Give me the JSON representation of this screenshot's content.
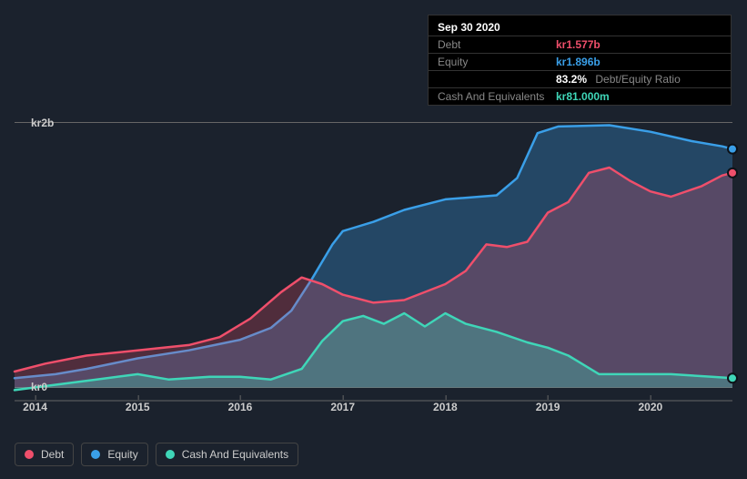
{
  "tooltip": {
    "date": "Sep 30 2020",
    "rows": {
      "debt": {
        "label": "Debt",
        "value": "kr1.577b"
      },
      "equity": {
        "label": "Equity",
        "value": "kr1.896b"
      },
      "ratio": {
        "value": "83.2%",
        "label": "Debt/Equity Ratio"
      },
      "cash": {
        "label": "Cash And Equivalents",
        "value": "kr81.000m"
      }
    }
  },
  "chart": {
    "type": "area",
    "background_color": "#1b222d",
    "grid_color": "#666",
    "axis_font_size": 12,
    "x": {
      "min": 2013.8,
      "max": 2020.8,
      "ticks": [
        2014,
        2015,
        2016,
        2017,
        2018,
        2019,
        2020
      ]
    },
    "y": {
      "min": -0.1,
      "max": 2.1,
      "ticks": [
        {
          "v": 0,
          "label": "kr0"
        },
        {
          "v": 2,
          "label": "kr2b"
        }
      ]
    },
    "series": {
      "equity": {
        "label": "Equity",
        "stroke": "#3a9fe8",
        "fill": "#3a9fe8",
        "fill_opacity": 0.3,
        "line_width": 2.5,
        "data": [
          [
            2013.8,
            0.07
          ],
          [
            2014.2,
            0.1
          ],
          [
            2014.5,
            0.14
          ],
          [
            2015.0,
            0.22
          ],
          [
            2015.5,
            0.28
          ],
          [
            2016.0,
            0.36
          ],
          [
            2016.3,
            0.45
          ],
          [
            2016.5,
            0.58
          ],
          [
            2016.7,
            0.82
          ],
          [
            2016.9,
            1.08
          ],
          [
            2017.0,
            1.18
          ],
          [
            2017.3,
            1.25
          ],
          [
            2017.6,
            1.34
          ],
          [
            2018.0,
            1.42
          ],
          [
            2018.5,
            1.45
          ],
          [
            2018.7,
            1.58
          ],
          [
            2018.9,
            1.92
          ],
          [
            2019.1,
            1.97
          ],
          [
            2019.6,
            1.98
          ],
          [
            2020.0,
            1.93
          ],
          [
            2020.4,
            1.86
          ],
          [
            2020.7,
            1.82
          ],
          [
            2020.8,
            1.8
          ]
        ]
      },
      "debt": {
        "label": "Debt",
        "stroke": "#ef4f6b",
        "fill": "#ef4f6b",
        "fill_opacity": 0.25,
        "line_width": 2.5,
        "data": [
          [
            2013.8,
            0.12
          ],
          [
            2014.1,
            0.18
          ],
          [
            2014.5,
            0.24
          ],
          [
            2015.0,
            0.28
          ],
          [
            2015.5,
            0.32
          ],
          [
            2015.8,
            0.38
          ],
          [
            2016.1,
            0.52
          ],
          [
            2016.4,
            0.72
          ],
          [
            2016.6,
            0.83
          ],
          [
            2016.8,
            0.78
          ],
          [
            2017.0,
            0.7
          ],
          [
            2017.3,
            0.64
          ],
          [
            2017.6,
            0.66
          ],
          [
            2018.0,
            0.78
          ],
          [
            2018.2,
            0.88
          ],
          [
            2018.4,
            1.08
          ],
          [
            2018.6,
            1.06
          ],
          [
            2018.8,
            1.1
          ],
          [
            2019.0,
            1.32
          ],
          [
            2019.2,
            1.4
          ],
          [
            2019.4,
            1.62
          ],
          [
            2019.6,
            1.66
          ],
          [
            2019.8,
            1.56
          ],
          [
            2020.0,
            1.48
          ],
          [
            2020.2,
            1.44
          ],
          [
            2020.5,
            1.52
          ],
          [
            2020.7,
            1.6
          ],
          [
            2020.8,
            1.62
          ]
        ]
      },
      "cash": {
        "label": "Cash And Equivalents",
        "stroke": "#3fd6b8",
        "fill": "#3fd6b8",
        "fill_opacity": 0.3,
        "line_width": 2.5,
        "data": [
          [
            2013.8,
            -0.02
          ],
          [
            2014.2,
            0.02
          ],
          [
            2014.6,
            0.06
          ],
          [
            2015.0,
            0.1
          ],
          [
            2015.3,
            0.06
          ],
          [
            2015.7,
            0.08
          ],
          [
            2016.0,
            0.08
          ],
          [
            2016.3,
            0.06
          ],
          [
            2016.6,
            0.14
          ],
          [
            2016.8,
            0.35
          ],
          [
            2017.0,
            0.5
          ],
          [
            2017.2,
            0.54
          ],
          [
            2017.4,
            0.48
          ],
          [
            2017.6,
            0.56
          ],
          [
            2017.8,
            0.46
          ],
          [
            2018.0,
            0.56
          ],
          [
            2018.2,
            0.48
          ],
          [
            2018.5,
            0.42
          ],
          [
            2018.8,
            0.34
          ],
          [
            2019.0,
            0.3
          ],
          [
            2019.2,
            0.24
          ],
          [
            2019.5,
            0.1
          ],
          [
            2019.8,
            0.1
          ],
          [
            2020.2,
            0.1
          ],
          [
            2020.6,
            0.08
          ],
          [
            2020.8,
            0.07
          ]
        ]
      }
    },
    "endpoint_markers": [
      {
        "series": "equity",
        "x": 2020.8,
        "y": 1.8,
        "fill": "#3a9fe8"
      },
      {
        "series": "debt",
        "x": 2020.8,
        "y": 1.62,
        "fill": "#ef4f6b"
      },
      {
        "series": "cash",
        "x": 2020.8,
        "y": 0.07,
        "fill": "#3fd6b8"
      }
    ],
    "legend": [
      {
        "key": "debt",
        "label": "Debt",
        "color": "#ef4f6b"
      },
      {
        "key": "equity",
        "label": "Equity",
        "color": "#3a9fe8"
      },
      {
        "key": "cash",
        "label": "Cash And Equivalents",
        "color": "#3fd6b8"
      }
    ]
  }
}
